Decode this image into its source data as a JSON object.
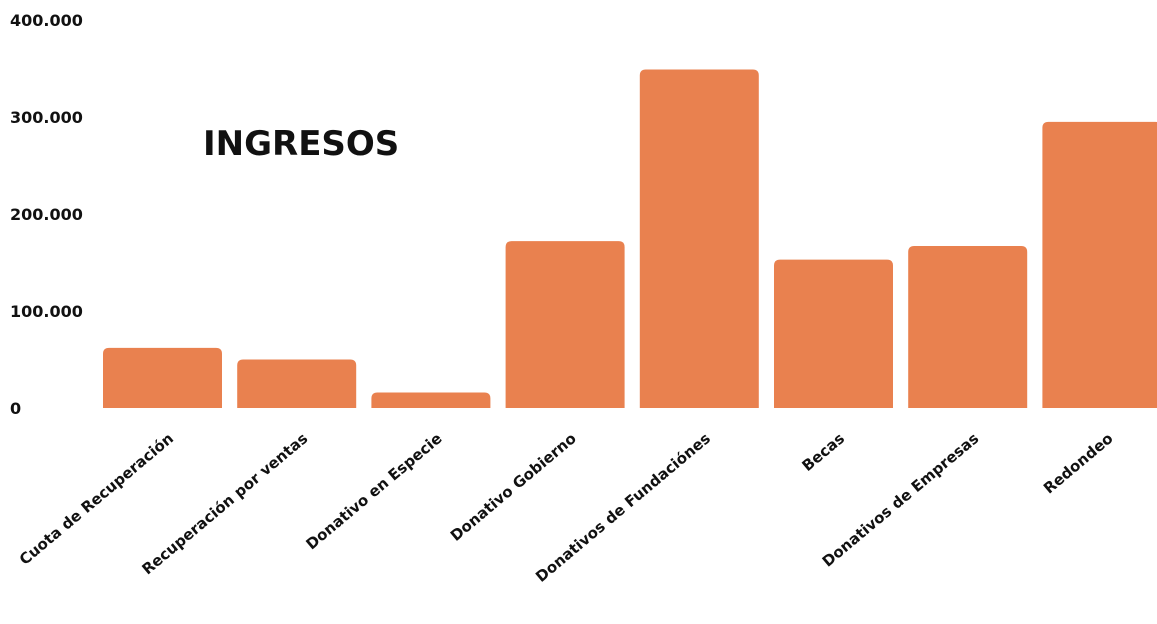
{
  "chart_data": {
    "type": "bar",
    "title": "INGRESOS",
    "categories": [
      "Cuota de Recuperación",
      "Recuperación por ventas",
      "Donativo en Especie",
      "Donativo Gobierno",
      "Donativos de Fundaciónes",
      "Becas",
      "Donativos de Empresas",
      "Redondeo"
    ],
    "values": [
      62000,
      50000,
      16000,
      172000,
      349000,
      153000,
      167000,
      295000
    ],
    "xlabel": "",
    "ylabel": "",
    "ylim": [
      0,
      400000
    ],
    "y_tick_labels": [
      "0",
      "100.000",
      "200.000",
      "300.000",
      "400.000"
    ],
    "grid": false,
    "legend": "none",
    "bar_color": "#E9814F"
  }
}
